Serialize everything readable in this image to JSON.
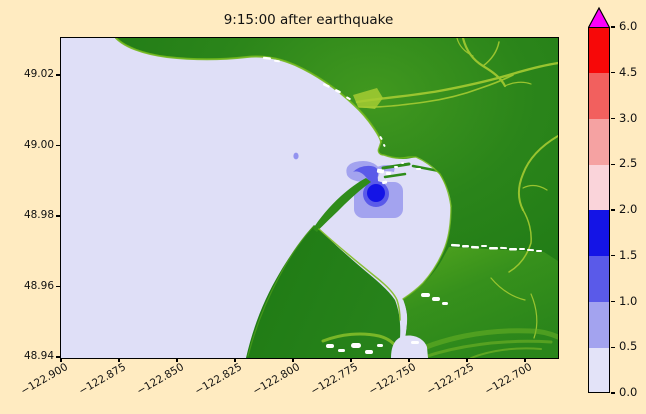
{
  "figure": {
    "title": "9:15:00 after earthquake",
    "background_color": "#FFEBC1"
  },
  "axes": {
    "x_ticks": [
      "−122.900",
      "−122.875",
      "−122.850",
      "−122.825",
      "−122.800",
      "−122.775",
      "−122.750",
      "−122.725",
      "−122.700"
    ],
    "y_ticks": [
      "49.02",
      "49.00",
      "48.98",
      "48.96",
      "48.94"
    ]
  },
  "colorbar": {
    "tick_labels": [
      "0.0",
      "0.5",
      "1.0",
      "1.5",
      "2.0",
      "2.5",
      "3.0",
      "4.5",
      "6.0"
    ],
    "segment_colors": [
      "#E3E3F8",
      "#A3A3EF",
      "#5A5AE9",
      "#1414E6",
      "#FAD4DA",
      "#F5A2A2",
      "#F2605E",
      "#F70808"
    ],
    "over_arrow_color": "#FB00FB"
  },
  "map_palette": {
    "water": "#DFDFF7",
    "land_dark": "#1E7915",
    "land_mid": "#2F8C1A",
    "land_light": "#55A81F",
    "river": "#A5CB32",
    "rim": "#72B81C",
    "shore_white": "#FFFFFF"
  },
  "chart_data": {
    "type": "heatmap",
    "title": "9:15:00 after earthquake",
    "xlabel": "",
    "ylabel": "",
    "x_tick_values": [
      -122.9,
      -122.875,
      -122.85,
      -122.825,
      -122.8,
      -122.775,
      -122.75,
      -122.725,
      -122.7
    ],
    "y_tick_values": [
      49.02,
      49.0,
      48.98,
      48.96,
      48.94
    ],
    "xlim": [
      -122.901,
      -122.686
    ],
    "ylim": [
      48.94,
      49.031
    ],
    "grid": false,
    "legend_position": "right-colorbar",
    "colorbar": {
      "boundaries": [
        0.0,
        0.5,
        1.0,
        1.5,
        2.0,
        2.5,
        3.0,
        4.5,
        6.0
      ],
      "colors": [
        "#E3E3F8",
        "#A3A3EF",
        "#5A5AE9",
        "#1414E6",
        "#FAD4DA",
        "#F5A2A2",
        "#F2605E",
        "#F70808"
      ],
      "over_color": "#FB00FB",
      "spacing": "uniform",
      "extend": "max"
    },
    "features": [
      {
        "name": "wave-core-peak",
        "lon": -122.765,
        "lat": 48.987,
        "value_range": "1.5-2.0"
      },
      {
        "name": "wave-mid-ring",
        "lon": -122.766,
        "lat": 48.987,
        "value_range": "1.0-1.5"
      },
      {
        "name": "wave-outer-patch",
        "lon": -122.77,
        "lat": 48.983,
        "value_range": "0.5-1.0"
      },
      {
        "name": "wave-upper-lobe",
        "lon": -122.775,
        "lat": 48.993,
        "value_range": "0.5-1.0"
      },
      {
        "name": "isolated-offshore-spot",
        "lon": -122.799,
        "lat": 48.997,
        "value_range": "0.5-1.0"
      },
      {
        "name": "shoreline-dash",
        "lon": -122.734,
        "lat": 48.962,
        "value_range": "1.0-1.5"
      },
      {
        "name": "open-water",
        "value_range": "0.0-0.5"
      }
    ]
  }
}
